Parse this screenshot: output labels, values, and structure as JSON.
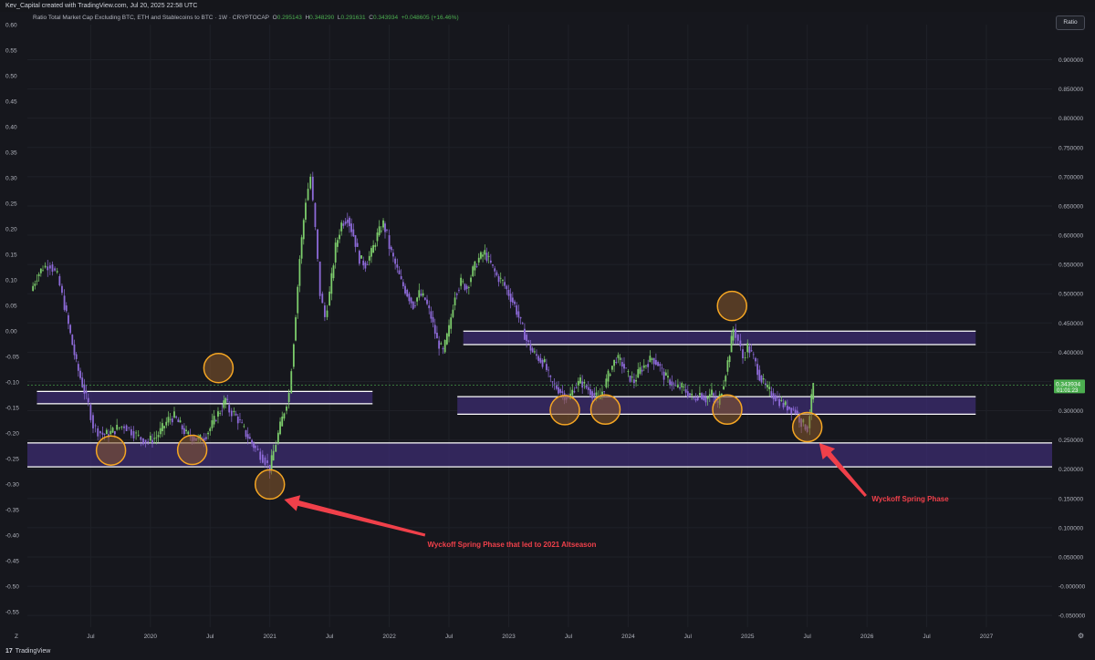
{
  "header": {
    "created_by": "Kev_Capital created with TradingView.com, Jul 20, 2025 22:58 UTC",
    "symbol_desc": "Ratio Total Market Cap Excluding BTC, ETH and Stablecoins to BTC · 1W · CRYPTOCAP",
    "o_label": "O",
    "o_value": "0.295143",
    "h_label": "H",
    "h_value": "0.348290",
    "l_label": "L",
    "l_value": "0.291631",
    "c_label": "C",
    "c_value": "0.343934",
    "change": "+0.048605 (+16.46%)",
    "ratio_button": "Ratio"
  },
  "footer": {
    "logo_text": "TradingView"
  },
  "colors": {
    "background": "#16171d",
    "up": "#7ccc6b",
    "down": "#8d6ad8",
    "zone_fill": "#3a2a6b",
    "circle_fill": "#8a5a2c",
    "circle_stroke": "#f5a623",
    "arrow": "#f0404a",
    "annotation_text": "#f0404a",
    "price_tag": "#4caf50"
  },
  "chart_data": {
    "type": "line",
    "title": "Ratio Total Market Cap Excluding BTC, ETH and Stablecoins to BTC",
    "interval": "1W",
    "left_axis": {
      "ticks": [
        "0.60",
        "0.55",
        "0.50",
        "0.45",
        "0.40",
        "0.35",
        "0.30",
        "0.25",
        "0.20",
        "0.15",
        "0.10",
        "0.05",
        "0.00",
        "-0.05",
        "-0.10",
        "-0.15",
        "-0.20",
        "-0.25",
        "-0.30",
        "-0.35",
        "-0.40",
        "-0.45",
        "-0.50",
        "-0.55"
      ],
      "range": [
        -0.58,
        0.6
      ]
    },
    "right_axis": {
      "ticks": [
        "0.900000",
        "0.850000",
        "0.800000",
        "0.750000",
        "0.700000",
        "0.650000",
        "0.600000",
        "0.550000",
        "0.500000",
        "0.450000",
        "0.400000",
        "0.350000",
        "0.300000",
        "0.250000",
        "0.200000",
        "0.150000",
        "0.100000",
        "0.050000",
        "-0.000000",
        "-0.050000"
      ],
      "range": [
        -0.07,
        0.96
      ],
      "scale": "linear"
    },
    "x_axis": {
      "ticks": [
        {
          "label": "Jul",
          "t": 2019.5
        },
        {
          "label": "2020",
          "t": 2020.0
        },
        {
          "label": "Jul",
          "t": 2020.5
        },
        {
          "label": "2021",
          "t": 2021.0
        },
        {
          "label": "Jul",
          "t": 2021.5
        },
        {
          "label": "2022",
          "t": 2022.0
        },
        {
          "label": "Jul",
          "t": 2022.5
        },
        {
          "label": "2023",
          "t": 2023.0
        },
        {
          "label": "Jul",
          "t": 2023.5
        },
        {
          "label": "2024",
          "t": 2024.0
        },
        {
          "label": "Jul",
          "t": 2024.5
        },
        {
          "label": "2025",
          "t": 2025.0
        },
        {
          "label": "Jul",
          "t": 2025.5
        },
        {
          "label": "2026",
          "t": 2026.0
        },
        {
          "label": "Jul",
          "t": 2026.5
        },
        {
          "label": "2027",
          "t": 2027.0
        }
      ],
      "range": [
        2018.97,
        2027.55
      ]
    },
    "grid": true,
    "series": [
      {
        "values": [
          [
            2019.0,
            0.505
          ],
          [
            2019.05,
            0.53
          ],
          [
            2019.1,
            0.545
          ],
          [
            2019.16,
            0.55
          ],
          [
            2019.22,
            0.53
          ],
          [
            2019.28,
            0.48
          ],
          [
            2019.33,
            0.43
          ],
          [
            2019.38,
            0.38
          ],
          [
            2019.43,
            0.345
          ],
          [
            2019.48,
            0.31
          ],
          [
            2019.52,
            0.275
          ],
          [
            2019.56,
            0.265
          ],
          [
            2019.6,
            0.26
          ],
          [
            2019.65,
            0.26
          ],
          [
            2019.72,
            0.27
          ],
          [
            2019.78,
            0.275
          ],
          [
            2019.84,
            0.265
          ],
          [
            2019.9,
            0.255
          ],
          [
            2019.96,
            0.248
          ],
          [
            2020.0,
            0.25
          ],
          [
            2020.05,
            0.255
          ],
          [
            2020.1,
            0.27
          ],
          [
            2020.15,
            0.285
          ],
          [
            2020.2,
            0.29
          ],
          [
            2020.25,
            0.275
          ],
          [
            2020.3,
            0.26
          ],
          [
            2020.35,
            0.255
          ],
          [
            2020.4,
            0.25
          ],
          [
            2020.45,
            0.255
          ],
          [
            2020.5,
            0.27
          ],
          [
            2020.55,
            0.29
          ],
          [
            2020.6,
            0.305
          ],
          [
            2020.63,
            0.32
          ],
          [
            2020.66,
            0.3
          ],
          [
            2020.7,
            0.295
          ],
          [
            2020.75,
            0.28
          ],
          [
            2020.8,
            0.26
          ],
          [
            2020.85,
            0.245
          ],
          [
            2020.88,
            0.235
          ],
          [
            2020.92,
            0.225
          ],
          [
            2020.96,
            0.215
          ],
          [
            2021.0,
            0.2
          ],
          [
            2021.03,
            0.23
          ],
          [
            2021.07,
            0.26
          ],
          [
            2021.12,
            0.3
          ],
          [
            2021.16,
            0.33
          ],
          [
            2021.2,
            0.42
          ],
          [
            2021.25,
            0.56
          ],
          [
            2021.3,
            0.66
          ],
          [
            2021.34,
            0.7
          ],
          [
            2021.38,
            0.61
          ],
          [
            2021.42,
            0.5
          ],
          [
            2021.46,
            0.46
          ],
          [
            2021.5,
            0.5
          ],
          [
            2021.55,
            0.58
          ],
          [
            2021.6,
            0.62
          ],
          [
            2021.65,
            0.63
          ],
          [
            2021.7,
            0.6
          ],
          [
            2021.75,
            0.56
          ],
          [
            2021.8,
            0.55
          ],
          [
            2021.85,
            0.57
          ],
          [
            2021.9,
            0.6
          ],
          [
            2021.95,
            0.62
          ],
          [
            2021.98,
            0.6
          ],
          [
            2022.0,
            0.58
          ],
          [
            2022.05,
            0.55
          ],
          [
            2022.1,
            0.52
          ],
          [
            2022.15,
            0.5
          ],
          [
            2022.2,
            0.48
          ],
          [
            2022.25,
            0.5
          ],
          [
            2022.3,
            0.49
          ],
          [
            2022.35,
            0.46
          ],
          [
            2022.4,
            0.42
          ],
          [
            2022.45,
            0.4
          ],
          [
            2022.5,
            0.44
          ],
          [
            2022.55,
            0.5
          ],
          [
            2022.6,
            0.52
          ],
          [
            2022.65,
            0.51
          ],
          [
            2022.7,
            0.54
          ],
          [
            2022.75,
            0.56
          ],
          [
            2022.8,
            0.57
          ],
          [
            2022.85,
            0.55
          ],
          [
            2022.9,
            0.53
          ],
          [
            2022.95,
            0.52
          ],
          [
            2023.0,
            0.5
          ],
          [
            2023.05,
            0.48
          ],
          [
            2023.1,
            0.45
          ],
          [
            2023.15,
            0.42
          ],
          [
            2023.2,
            0.4
          ],
          [
            2023.25,
            0.39
          ],
          [
            2023.3,
            0.38
          ],
          [
            2023.35,
            0.35
          ],
          [
            2023.4,
            0.34
          ],
          [
            2023.45,
            0.33
          ],
          [
            2023.5,
            0.32
          ],
          [
            2023.55,
            0.34
          ],
          [
            2023.6,
            0.35
          ],
          [
            2023.65,
            0.34
          ],
          [
            2023.7,
            0.33
          ],
          [
            2023.75,
            0.32
          ],
          [
            2023.8,
            0.34
          ],
          [
            2023.85,
            0.37
          ],
          [
            2023.9,
            0.39
          ],
          [
            2023.95,
            0.38
          ],
          [
            2024.0,
            0.36
          ],
          [
            2024.05,
            0.35
          ],
          [
            2024.1,
            0.37
          ],
          [
            2024.15,
            0.38
          ],
          [
            2024.2,
            0.39
          ],
          [
            2024.25,
            0.38
          ],
          [
            2024.3,
            0.36
          ],
          [
            2024.35,
            0.35
          ],
          [
            2024.4,
            0.34
          ],
          [
            2024.45,
            0.34
          ],
          [
            2024.5,
            0.33
          ],
          [
            2024.55,
            0.32
          ],
          [
            2024.6,
            0.33
          ],
          [
            2024.65,
            0.32
          ],
          [
            2024.7,
            0.33
          ],
          [
            2024.75,
            0.31
          ],
          [
            2024.8,
            0.35
          ],
          [
            2024.85,
            0.4
          ],
          [
            2024.88,
            0.44
          ],
          [
            2024.92,
            0.42
          ],
          [
            2024.96,
            0.39
          ],
          [
            2025.0,
            0.41
          ],
          [
            2025.05,
            0.39
          ],
          [
            2025.1,
            0.36
          ],
          [
            2025.15,
            0.34
          ],
          [
            2025.2,
            0.33
          ],
          [
            2025.25,
            0.32
          ],
          [
            2025.3,
            0.31
          ],
          [
            2025.35,
            0.305
          ],
          [
            2025.4,
            0.3
          ],
          [
            2025.45,
            0.28
          ],
          [
            2025.5,
            0.27
          ],
          [
            2025.52,
            0.295
          ],
          [
            2025.55,
            0.3439
          ]
        ]
      }
    ],
    "zones": [
      {
        "t0": 2019.05,
        "t1": 2021.86,
        "y0": 0.333,
        "y1": 0.312
      },
      {
        "t0": 2018.97,
        "t1": 2027.55,
        "y0": 0.245,
        "y1": 0.204
      },
      {
        "t0": 2022.62,
        "t1": 2026.91,
        "y0": 0.436,
        "y1": 0.413
      },
      {
        "t0": 2022.57,
        "t1": 2026.91,
        "y0": 0.324,
        "y1": 0.294
      }
    ],
    "circles": [
      {
        "t": 2019.67,
        "y": 0.232
      },
      {
        "t": 2020.35,
        "y": 0.233
      },
      {
        "t": 2020.57,
        "y": 0.373
      },
      {
        "t": 2021.0,
        "y": 0.174
      },
      {
        "t": 2023.47,
        "y": 0.301
      },
      {
        "t": 2023.81,
        "y": 0.302
      },
      {
        "t": 2024.83,
        "y": 0.302
      },
      {
        "t": 2024.87,
        "y": 0.479
      },
      {
        "t": 2025.5,
        "y": 0.272
      }
    ],
    "annotations": [
      {
        "text": "Wyckoff Spring Phase that led to 2021 Altseason"
      },
      {
        "text": "Wyckoff Spring Phase"
      }
    ],
    "last_price": {
      "value": "0.343934",
      "countdown": "01:01:23"
    }
  }
}
